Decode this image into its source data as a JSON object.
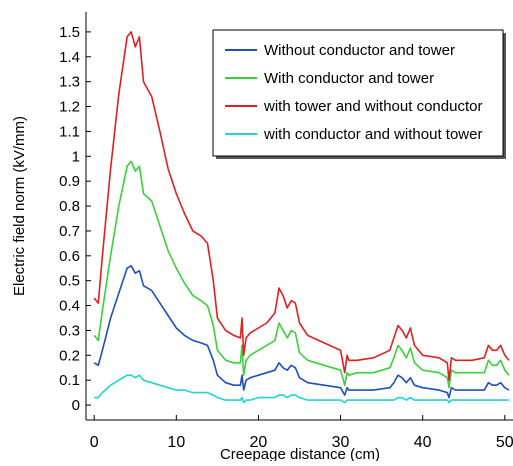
{
  "chart_data": {
    "type": "line",
    "title": "",
    "xlabel": "Creepage distance (cm)",
    "ylabel": "Electric field norm (kV/mm)",
    "xlim": [
      -1,
      51
    ],
    "ylim": [
      -0.06,
      1.58
    ],
    "grid": false,
    "legend_position": "top-right",
    "x_ticks": [
      0,
      10,
      20,
      30,
      40,
      50
    ],
    "x_tick_labels": [
      "0",
      "10",
      "20",
      "30",
      "40",
      "50"
    ],
    "y_ticks": [
      0,
      0.1,
      0.2,
      0.3,
      0.4,
      0.5,
      0.6,
      0.7,
      0.8,
      0.9,
      1,
      1.1,
      1.2,
      1.3,
      1.4,
      1.5
    ],
    "y_tick_labels": [
      "0",
      "0.1",
      "0.2",
      "0.3",
      "0.4",
      "0.5",
      "0.6",
      "0.7",
      "0.8",
      "0.9",
      "1",
      "1.1",
      "1.2",
      "1.3",
      "1.4",
      "1.5"
    ],
    "series": [
      {
        "name": "Without conductor and tower",
        "color": "#1f4fbf",
        "x": [
          0,
          0.5,
          1,
          2,
          3,
          4,
          4.5,
          5,
          5.5,
          6,
          7,
          8,
          9,
          10,
          11,
          12,
          13,
          13.8,
          14.5,
          15,
          16,
          17,
          17.8,
          18,
          18.2,
          18.5,
          19,
          20,
          21,
          22,
          22.5,
          23,
          23.5,
          24,
          24.5,
          25,
          26,
          28,
          30,
          30.5,
          30.8,
          31,
          32,
          34,
          36,
          36.5,
          37,
          37.5,
          38,
          38.5,
          39,
          40,
          42,
          43,
          43.2,
          43.5,
          44,
          46,
          47.5,
          48,
          48.5,
          49,
          49.5,
          50,
          50.5
        ],
        "y": [
          0.17,
          0.16,
          0.22,
          0.35,
          0.45,
          0.55,
          0.56,
          0.53,
          0.54,
          0.48,
          0.46,
          0.41,
          0.36,
          0.31,
          0.28,
          0.26,
          0.25,
          0.24,
          0.18,
          0.12,
          0.09,
          0.08,
          0.08,
          0.12,
          0.06,
          0.1,
          0.11,
          0.12,
          0.13,
          0.14,
          0.17,
          0.15,
          0.14,
          0.16,
          0.15,
          0.11,
          0.09,
          0.08,
          0.07,
          0.04,
          0.07,
          0.06,
          0.06,
          0.06,
          0.07,
          0.09,
          0.12,
          0.11,
          0.09,
          0.11,
          0.08,
          0.07,
          0.06,
          0.05,
          0.03,
          0.07,
          0.06,
          0.06,
          0.06,
          0.09,
          0.08,
          0.08,
          0.09,
          0.07,
          0.06
        ]
      },
      {
        "name": "With conductor and tower",
        "color": "#3cd03c",
        "x": [
          0,
          0.5,
          1,
          2,
          3,
          4,
          4.5,
          5,
          5.5,
          6,
          7,
          8,
          9,
          10,
          11,
          12,
          13,
          13.8,
          14.5,
          15,
          16,
          17,
          17.8,
          18,
          18.2,
          18.5,
          19,
          20,
          21,
          22,
          22.5,
          23,
          23.5,
          24,
          24.5,
          25,
          26,
          28,
          30,
          30.5,
          30.8,
          31,
          32,
          34,
          36,
          36.5,
          37,
          37.5,
          38,
          38.5,
          39,
          40,
          42,
          43,
          43.2,
          43.5,
          44,
          46,
          47.5,
          48,
          48.5,
          49,
          49.5,
          50,
          50.5
        ],
        "y": [
          0.28,
          0.26,
          0.38,
          0.6,
          0.8,
          0.96,
          0.98,
          0.94,
          0.96,
          0.85,
          0.82,
          0.72,
          0.62,
          0.55,
          0.49,
          0.44,
          0.42,
          0.4,
          0.32,
          0.22,
          0.18,
          0.17,
          0.17,
          0.24,
          0.12,
          0.18,
          0.2,
          0.22,
          0.24,
          0.26,
          0.33,
          0.3,
          0.27,
          0.3,
          0.29,
          0.21,
          0.18,
          0.16,
          0.14,
          0.08,
          0.13,
          0.12,
          0.13,
          0.13,
          0.15,
          0.19,
          0.24,
          0.22,
          0.19,
          0.23,
          0.17,
          0.14,
          0.13,
          0.11,
          0.07,
          0.14,
          0.13,
          0.13,
          0.13,
          0.18,
          0.16,
          0.16,
          0.18,
          0.14,
          0.12
        ]
      },
      {
        "name": "with tower and without conductor",
        "color": "#e02020",
        "x": [
          0,
          0.5,
          1,
          2,
          3,
          4,
          4.5,
          5,
          5.5,
          6,
          7,
          8,
          9,
          10,
          11,
          12,
          13,
          13.8,
          14.5,
          15,
          16,
          17,
          17.8,
          18,
          18.2,
          18.5,
          19,
          20,
          21,
          22,
          22.5,
          23,
          23.5,
          24,
          24.5,
          25,
          26,
          28,
          30,
          30.5,
          30.8,
          31,
          32,
          34,
          36,
          36.5,
          37,
          37.5,
          38,
          38.5,
          39,
          40,
          42,
          43,
          43.2,
          43.5,
          44,
          46,
          47.5,
          48,
          48.5,
          49,
          49.5,
          50,
          50.5
        ],
        "y": [
          0.43,
          0.41,
          0.6,
          0.95,
          1.25,
          1.48,
          1.5,
          1.44,
          1.48,
          1.3,
          1.24,
          1.1,
          0.95,
          0.85,
          0.77,
          0.7,
          0.68,
          0.65,
          0.5,
          0.35,
          0.3,
          0.28,
          0.27,
          0.35,
          0.2,
          0.27,
          0.29,
          0.31,
          0.33,
          0.37,
          0.47,
          0.44,
          0.39,
          0.42,
          0.41,
          0.33,
          0.28,
          0.25,
          0.22,
          0.13,
          0.2,
          0.18,
          0.18,
          0.19,
          0.22,
          0.27,
          0.32,
          0.3,
          0.27,
          0.31,
          0.24,
          0.2,
          0.19,
          0.17,
          0.1,
          0.19,
          0.18,
          0.18,
          0.19,
          0.24,
          0.22,
          0.22,
          0.24,
          0.2,
          0.18
        ]
      },
      {
        "name": "with conductor and without tower",
        "color": "#22d4d4",
        "x": [
          0,
          0.5,
          1,
          2,
          3,
          4,
          4.5,
          5,
          5.5,
          6,
          7,
          8,
          9,
          10,
          11,
          12,
          13,
          13.8,
          14.5,
          15,
          16,
          17,
          17.8,
          18,
          18.2,
          18.5,
          19,
          20,
          21,
          22,
          22.5,
          23,
          23.5,
          24,
          24.5,
          25,
          26,
          28,
          30,
          30.5,
          30.8,
          31,
          32,
          34,
          36,
          36.5,
          37,
          37.5,
          38,
          38.5,
          39,
          40,
          42,
          43,
          43.2,
          43.5,
          44,
          46,
          47.5,
          48,
          48.5,
          49,
          49.5,
          50,
          50.5
        ],
        "y": [
          0.03,
          0.03,
          0.05,
          0.08,
          0.1,
          0.12,
          0.12,
          0.11,
          0.12,
          0.1,
          0.09,
          0.08,
          0.07,
          0.06,
          0.06,
          0.05,
          0.05,
          0.05,
          0.04,
          0.03,
          0.02,
          0.02,
          0.02,
          0.03,
          0.01,
          0.02,
          0.02,
          0.03,
          0.03,
          0.03,
          0.04,
          0.04,
          0.03,
          0.04,
          0.04,
          0.03,
          0.02,
          0.02,
          0.02,
          0.01,
          0.02,
          0.02,
          0.02,
          0.02,
          0.02,
          0.02,
          0.03,
          0.03,
          0.02,
          0.03,
          0.02,
          0.02,
          0.02,
          0.02,
          0.01,
          0.02,
          0.02,
          0.02,
          0.02,
          0.02,
          0.02,
          0.02,
          0.02,
          0.02,
          0.02
        ]
      }
    ]
  }
}
